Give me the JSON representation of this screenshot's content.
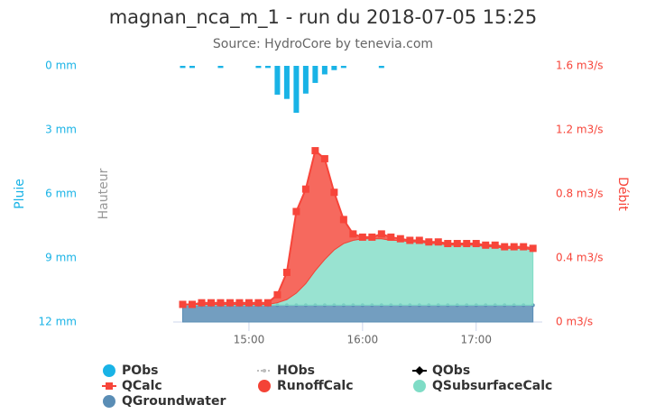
{
  "chart_data": {
    "type": "hydrograph",
    "title": "magnan_nca_m_1 - run du 2018-07-05 15:25",
    "subtitle": "Source: HydroCore by tenevia.com",
    "ylabel": "Pluie",
    "y3label": "Hauteur",
    "y2label": "Débit",
    "x": [
      "14:25",
      "14:30",
      "14:35",
      "14:40",
      "14:45",
      "14:50",
      "14:55",
      "15:00",
      "15:05",
      "15:10",
      "15:15",
      "15:20",
      "15:25",
      "15:30",
      "15:35",
      "15:40",
      "15:45",
      "15:50",
      "15:55",
      "16:00",
      "16:05",
      "16:10",
      "16:15",
      "16:20",
      "16:25",
      "16:30",
      "16:35",
      "16:40",
      "16:45",
      "16:50",
      "16:55",
      "17:00",
      "17:05",
      "17:10",
      "17:15",
      "17:20",
      "17:25",
      "17:30"
    ],
    "xlim": [
      "14:20",
      "17:33"
    ],
    "xticks": [
      "15:00",
      "16:00",
      "17:00"
    ],
    "ylim": [
      12,
      0
    ],
    "yticks": [
      {
        "value": 0,
        "label": "0 mm"
      },
      {
        "value": 3,
        "label": "3 mm"
      },
      {
        "value": 6,
        "label": "6 mm"
      },
      {
        "value": 9,
        "label": "9 mm"
      },
      {
        "value": 12,
        "label": "12 mm"
      }
    ],
    "y2lim": [
      0,
      1.6
    ],
    "y2ticks": [
      {
        "value": 0,
        "label": "0 m3/s"
      },
      {
        "value": 0.4,
        "label": "0.4 m3/s"
      },
      {
        "value": 0.8,
        "label": "0.8 m3/s"
      },
      {
        "value": 1.2,
        "label": "1.2 m3/s"
      },
      {
        "value": 1.6,
        "label": "1.6 m3/s"
      }
    ],
    "series": [
      {
        "name": "PObs",
        "kind": "bar",
        "color": "#19b3e6",
        "values": [
          0.1,
          0.1,
          null,
          null,
          0.1,
          null,
          null,
          null,
          0.1,
          0.1,
          1.35,
          1.55,
          2.2,
          1.3,
          0.8,
          0.4,
          0.2,
          0.1,
          null,
          null,
          null,
          0.1,
          null,
          null,
          null,
          null,
          null,
          null,
          null,
          null,
          null,
          null,
          null,
          null,
          null,
          null,
          null,
          null
        ]
      },
      {
        "name": "HObs",
        "kind": "line",
        "marker": "circle",
        "color": "#bdbdbd",
        "axis": "y3",
        "values": [
          null,
          null,
          null,
          null,
          null,
          null,
          null,
          null,
          null,
          null,
          null,
          null,
          null,
          null,
          null,
          null,
          null,
          null,
          null,
          null,
          null,
          null,
          null,
          null,
          null,
          null,
          null,
          null,
          null,
          null,
          null,
          null,
          null,
          null,
          null,
          null,
          null,
          null
        ]
      },
      {
        "name": "QObs",
        "kind": "line",
        "marker": "diamond",
        "color": "#000000",
        "axis": "y2",
        "values": [
          null,
          null,
          null,
          null,
          null,
          null,
          null,
          null,
          null,
          null,
          null,
          null,
          null,
          null,
          null,
          null,
          null,
          null,
          null,
          null,
          null,
          null,
          null,
          null,
          null,
          null,
          null,
          null,
          null,
          null,
          null,
          null,
          null,
          null,
          null,
          null,
          null,
          null
        ]
      },
      {
        "name": "QCalc",
        "kind": "line",
        "marker": "square",
        "color": "#f7453a",
        "axis": "y2",
        "values": [
          0.11,
          0.11,
          0.12,
          0.12,
          0.12,
          0.12,
          0.12,
          0.12,
          0.12,
          0.12,
          0.17,
          0.31,
          0.69,
          0.83,
          1.07,
          1.02,
          0.81,
          0.64,
          0.55,
          0.53,
          0.53,
          0.55,
          0.53,
          0.52,
          0.51,
          0.51,
          0.5,
          0.5,
          0.49,
          0.49,
          0.49,
          0.49,
          0.48,
          0.48,
          0.47,
          0.47,
          0.47,
          0.46
        ]
      },
      {
        "name": "RunoffCalc",
        "kind": "area",
        "stack": 3,
        "marker": "circle",
        "color": "#f44336",
        "axis": "y2",
        "values": [
          0,
          0,
          0.01,
          0.01,
          0.01,
          0.01,
          0.01,
          0.01,
          0.01,
          0.01,
          0.05,
          0.17,
          0.51,
          0.59,
          0.75,
          0.63,
          0.36,
          0.15,
          0.04,
          0.01,
          0.01,
          0.03,
          0.02,
          0.01,
          0.01,
          0.01,
          0.01,
          0.01,
          0.01,
          0.01,
          0.01,
          0.01,
          0.01,
          0.01,
          0.01,
          0.01,
          0.01,
          0.01
        ]
      },
      {
        "name": "QSubsurfaceCalc",
        "kind": "area",
        "stack": 2,
        "marker": "circle",
        "color": "#7fdcc6",
        "axis": "y2",
        "values": [
          0.005,
          0.005,
          0.005,
          0.005,
          0.005,
          0.005,
          0.005,
          0.005,
          0.005,
          0.005,
          0.015,
          0.035,
          0.075,
          0.135,
          0.215,
          0.285,
          0.345,
          0.385,
          0.405,
          0.415,
          0.415,
          0.415,
          0.405,
          0.405,
          0.395,
          0.395,
          0.385,
          0.385,
          0.375,
          0.375,
          0.375,
          0.375,
          0.365,
          0.365,
          0.355,
          0.355,
          0.355,
          0.345
        ]
      },
      {
        "name": "QGroundwater",
        "kind": "area",
        "stack": 1,
        "marker": "circle",
        "color": "#5a8db5",
        "axis": "y2",
        "values": [
          0.105,
          0.105,
          0.105,
          0.105,
          0.105,
          0.105,
          0.105,
          0.105,
          0.105,
          0.105,
          0.105,
          0.105,
          0.105,
          0.105,
          0.105,
          0.105,
          0.105,
          0.105,
          0.105,
          0.105,
          0.105,
          0.105,
          0.105,
          0.105,
          0.105,
          0.105,
          0.105,
          0.105,
          0.105,
          0.105,
          0.105,
          0.105,
          0.105,
          0.105,
          0.105,
          0.105,
          0.105,
          0.105
        ]
      }
    ]
  }
}
